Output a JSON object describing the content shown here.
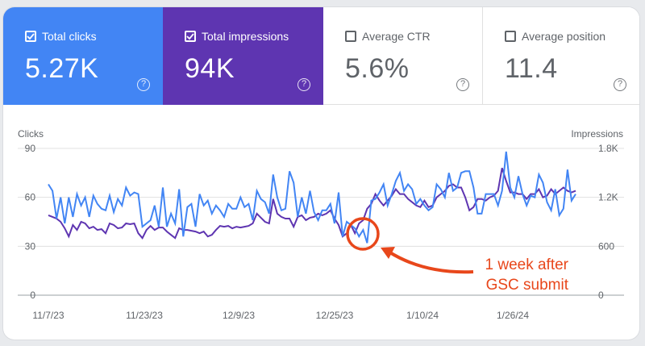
{
  "metrics": [
    {
      "label": "Total clicks",
      "value": "5.27K",
      "checked": true,
      "help": "?"
    },
    {
      "label": "Total impressions",
      "value": "94K",
      "checked": true,
      "help": "?"
    },
    {
      "label": "Average CTR",
      "value": "5.6%",
      "checked": false,
      "help": "?"
    },
    {
      "label": "Average position",
      "value": "11.4",
      "checked": false,
      "help": "?"
    }
  ],
  "colors": {
    "clicks": "#4285f4",
    "impressions": "#5e35b1",
    "annotation": "#e8471b"
  },
  "chart_data": {
    "type": "line",
    "ylabel_left": "Clicks",
    "ylabel_right": "Impressions",
    "yticks_left": [
      "0",
      "30",
      "60",
      "90"
    ],
    "yticks_right": [
      "0",
      "600",
      "1.2K",
      "1.8K"
    ],
    "ylim_left": [
      0,
      90
    ],
    "ylim_right": [
      0,
      1800
    ],
    "xticks": [
      "11/7/23",
      "11/23/23",
      "12/9/23",
      "12/25/23",
      "1/10/24",
      "1/26/24"
    ],
    "grid": true,
    "series": [
      {
        "name": "Clicks",
        "axis": "left",
        "values": [
          68,
          64,
          47,
          60,
          44,
          60,
          48,
          62,
          55,
          60,
          48,
          61,
          56,
          53,
          52,
          61,
          51,
          59,
          55,
          66,
          61,
          63,
          62,
          42,
          44,
          46,
          55,
          42,
          66,
          42,
          50,
          44,
          65,
          36,
          54,
          56,
          42,
          62,
          55,
          58,
          50,
          55,
          52,
          48,
          56,
          53,
          53,
          60,
          54,
          56,
          46,
          64,
          59,
          57,
          50,
          74,
          60,
          52,
          53,
          76,
          69,
          48,
          60,
          50,
          64,
          51,
          46,
          52,
          52,
          56,
          44,
          63,
          36,
          45,
          43,
          41,
          36,
          40,
          32,
          58,
          59,
          63,
          68,
          55,
          62,
          70,
          75,
          64,
          68,
          65,
          56,
          59,
          55,
          52,
          54,
          68,
          65,
          60,
          75,
          64,
          66,
          75,
          76,
          76,
          66,
          50,
          50,
          62,
          62,
          62,
          55,
          64,
          88,
          66,
          60,
          73,
          62,
          55,
          61,
          60,
          74,
          69,
          57,
          52,
          65,
          49,
          53,
          77,
          58,
          62
        ],
        "range": [
          0,
          129
        ]
      },
      {
        "name": "Impressions",
        "axis": "right",
        "values": [
          980,
          960,
          940,
          900,
          820,
          720,
          860,
          800,
          900,
          880,
          820,
          840,
          800,
          810,
          760,
          880,
          860,
          820,
          830,
          880,
          870,
          880,
          760,
          700,
          800,
          850,
          800,
          830,
          830,
          780,
          740,
          700,
          820,
          800,
          800,
          790,
          780,
          760,
          780,
          720,
          740,
          800,
          850,
          840,
          850,
          820,
          840,
          830,
          840,
          850,
          880,
          1000,
          950,
          900,
          880,
          1180,
          1000,
          960,
          940,
          940,
          840,
          960,
          980,
          920,
          950,
          960,
          1000,
          980,
          1000,
          1040,
          940,
          860,
          720,
          760,
          860,
          760,
          880,
          920,
          1060,
          1120,
          1240,
          1160,
          1100,
          1160,
          1220,
          1300,
          1240,
          1240,
          1180,
          1140,
          1100,
          1080,
          1160,
          1080,
          1100,
          1200,
          1240,
          1280,
          1340,
          1360,
          1320,
          1320,
          1200,
          1040,
          1080,
          1180,
          1180,
          1160,
          1200,
          1220,
          1280,
          1560,
          1400,
          1260,
          1260,
          1240,
          1240,
          1180,
          1240,
          1240,
          1300,
          1200,
          1220,
          1300,
          1240,
          1280,
          1320,
          1280,
          1260,
          1280
        ],
        "range": [
          0,
          129
        ]
      }
    ],
    "annotation": {
      "lines": [
        "1 week after",
        "GSC submit"
      ]
    }
  }
}
